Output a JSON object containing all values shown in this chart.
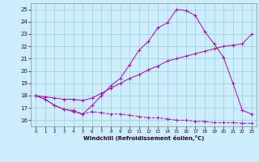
{
  "xlabel": "Windchill (Refroidissement éolien,°C)",
  "background_color": "#cceeff",
  "grid_color": "#99cccc",
  "line_color": "#aa00aa",
  "xlim": [
    -0.5,
    23.5
  ],
  "ylim": [
    15.5,
    25.5
  ],
  "xticks": [
    0,
    1,
    2,
    3,
    4,
    5,
    6,
    7,
    8,
    9,
    10,
    11,
    12,
    13,
    14,
    15,
    16,
    17,
    18,
    19,
    20,
    21,
    22,
    23
  ],
  "yticks": [
    16,
    17,
    18,
    19,
    20,
    21,
    22,
    23,
    24,
    25
  ],
  "line1_x": [
    0,
    1,
    2,
    3,
    4,
    5,
    6,
    7,
    8,
    9,
    10,
    11,
    12,
    13,
    14,
    15,
    16,
    17,
    18,
    19,
    20,
    21,
    22,
    23
  ],
  "line1_y": [
    18.0,
    17.7,
    17.2,
    16.9,
    16.8,
    16.5,
    16.7,
    16.6,
    16.5,
    16.5,
    16.4,
    16.3,
    16.2,
    16.2,
    16.1,
    16.0,
    16.0,
    15.9,
    15.9,
    15.8,
    15.8,
    15.8,
    15.75,
    15.75
  ],
  "line2_x": [
    0,
    1,
    2,
    3,
    4,
    5,
    6,
    7,
    8,
    9,
    10,
    11,
    12,
    13,
    14,
    15,
    16,
    17,
    18,
    19,
    20,
    21,
    22,
    23
  ],
  "line2_y": [
    18.0,
    17.9,
    17.8,
    17.7,
    17.7,
    17.6,
    17.8,
    18.2,
    18.6,
    19.0,
    19.4,
    19.7,
    20.1,
    20.4,
    20.8,
    21.0,
    21.2,
    21.4,
    21.6,
    21.8,
    22.0,
    22.1,
    22.2,
    23.0
  ],
  "line3_x": [
    0,
    1,
    2,
    3,
    4,
    5,
    6,
    7,
    8,
    9,
    10,
    11,
    12,
    13,
    14,
    15,
    16,
    17,
    18,
    19,
    20,
    21,
    22,
    23
  ],
  "line3_y": [
    18.0,
    17.7,
    17.2,
    16.9,
    16.7,
    16.5,
    17.2,
    18.0,
    18.8,
    19.4,
    20.5,
    21.7,
    22.4,
    23.5,
    23.9,
    25.0,
    24.9,
    24.5,
    23.2,
    22.2,
    21.1,
    19.0,
    16.8,
    16.5
  ]
}
